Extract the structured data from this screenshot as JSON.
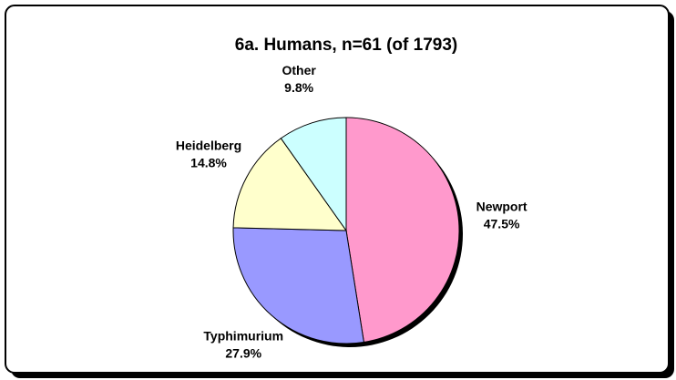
{
  "chart_data": {
    "type": "pie",
    "title": "6a. Humans, n=61 (of 1793)",
    "categories": [
      "Newport",
      "Typhimurium",
      "Heidelberg",
      "Other"
    ],
    "values": [
      47.5,
      27.9,
      14.8,
      9.8
    ],
    "value_labels": [
      "47.5%",
      "27.9%",
      "14.8%",
      "9.8%"
    ],
    "colors": [
      "#ff99cc",
      "#9999ff",
      "#ffffcc",
      "#ccffff"
    ]
  }
}
